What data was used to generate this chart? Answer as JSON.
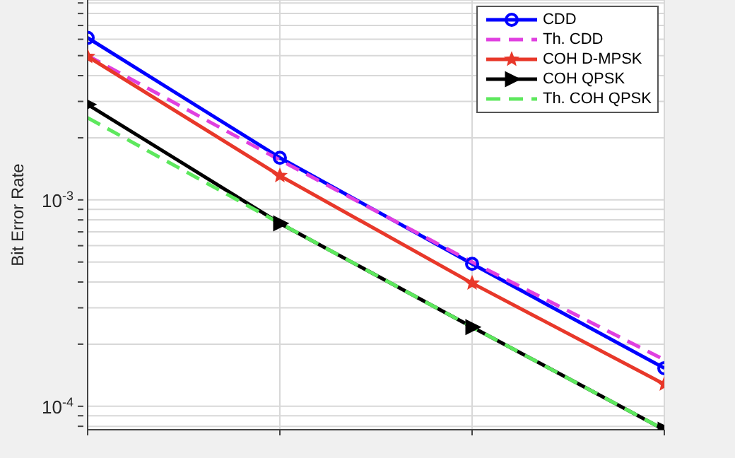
{
  "chart_data": {
    "type": "line",
    "ylabel": "Bit Error Rate",
    "categories": [
      null,
      null,
      null,
      null
    ],
    "log": "y",
    "grid": true,
    "legend": "top right",
    "ylim": [
      7.7e-05,
      0.0093
    ],
    "yticks": [
      {
        "value": 8e-05,
        "label": null
      },
      {
        "value": 9e-05,
        "label": null
      },
      {
        "value": 0.0001,
        "label": "10$^{-4}$"
      },
      {
        "value": 0.0002,
        "label": null
      },
      {
        "value": 0.0003,
        "label": null
      },
      {
        "value": 0.0004,
        "label": null
      },
      {
        "value": 0.0005,
        "label": null
      },
      {
        "value": 0.0006,
        "label": null
      },
      {
        "value": 0.0007,
        "label": null
      },
      {
        "value": 0.0008,
        "label": null
      },
      {
        "value": 0.0009,
        "label": null
      },
      {
        "value": 0.001,
        "label": "10$^{-3}$"
      },
      {
        "value": 0.002,
        "label": null
      },
      {
        "value": 0.003,
        "label": null
      },
      {
        "value": 0.004,
        "label": null
      },
      {
        "value": 0.005,
        "label": null
      },
      {
        "value": 0.006,
        "label": null
      },
      {
        "value": 0.007,
        "label": null
      },
      {
        "value": 0.008,
        "label": null
      },
      {
        "value": 0.009,
        "label": null
      }
    ],
    "series": [
      {
        "name": "CDD",
        "color": "#0000ff",
        "marker": "circle",
        "line_style": "solid",
        "values": [
          0.0061,
          0.0016,
          0.00049,
          0.000153
        ]
      },
      {
        "name": "Th. CDD",
        "color": "#e040e0",
        "marker": "none",
        "line_style": "dashed",
        "values": [
          0.005,
          0.00156,
          0.0005,
          0.000168
        ]
      },
      {
        "name": "COH D-MPSK",
        "color": "#e8382a",
        "marker": "star",
        "line_style": "solid",
        "values": [
          0.00495,
          0.00131,
          0.000395,
          0.000128
        ]
      },
      {
        "name": "COH QPSK",
        "color": "#000000",
        "marker": "triangle",
        "line_style": "solid",
        "values": [
          0.0029,
          0.00077,
          0.000242,
          7.7e-05
        ]
      },
      {
        "name": "Th. COH QPSK",
        "color": "#5de85d",
        "marker": "none",
        "line_style": "dashed",
        "values": [
          0.0025,
          0.00077,
          0.000242,
          7.7e-05
        ]
      }
    ]
  }
}
